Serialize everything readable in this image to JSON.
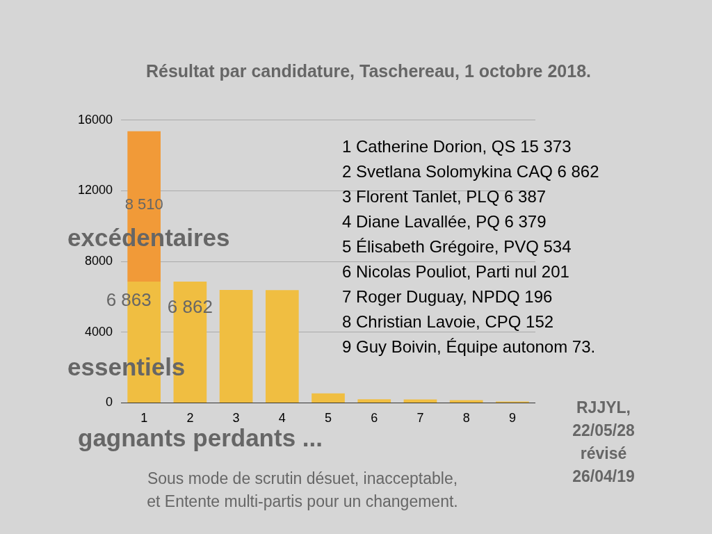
{
  "chart_data": {
    "type": "bar",
    "title": "Résultat par candidature, Taschereau, 1 octobre 2018.",
    "stacked": true,
    "categories": [
      "1",
      "2",
      "3",
      "4",
      "5",
      "6",
      "7",
      "8",
      "9"
    ],
    "series": [
      {
        "name": "essentiels",
        "color": "#f0be41",
        "values": [
          6863,
          6862,
          6387,
          6379,
          534,
          201,
          196,
          152,
          73
        ],
        "value_labels": [
          "6 863",
          "6 862",
          null,
          null,
          null,
          null,
          null,
          null,
          null
        ]
      },
      {
        "name": "excédentaires",
        "color": "#f19a38",
        "values": [
          8510,
          null,
          null,
          null,
          null,
          null,
          null,
          null,
          null
        ],
        "value_labels": [
          "8 510",
          null,
          null,
          null,
          null,
          null,
          null,
          null,
          null
        ]
      }
    ],
    "ylim": [
      0,
      16000
    ],
    "yticks": [
      0,
      4000,
      8000,
      12000,
      16000
    ],
    "grid": "y",
    "legend": false,
    "annotations": [
      "1 Catherine Dorion, QS 15 373",
      "2 Svetlana Solomykina CAQ 6 862",
      "3 Florent Tanlet, PLQ 6 387",
      "4 Diane Lavallée, PQ 6 379",
      "5 Élisabeth Grégoire, PVQ 534",
      "6 Nicolas Pouliot, Parti nul 201",
      "7 Roger Duguay, NPDQ 196",
      "8 Christian Lavoie, CPQ 152",
      "9 Guy Boivin, Équipe autonom 73.",
      "gagnants perdants ...",
      "Sous mode de scrutin désuet, inacceptable,\net Entente multi-partis pour un changement.",
      "RJJYL,\n22/05/28\nrévisé\n26/04/19"
    ]
  }
}
